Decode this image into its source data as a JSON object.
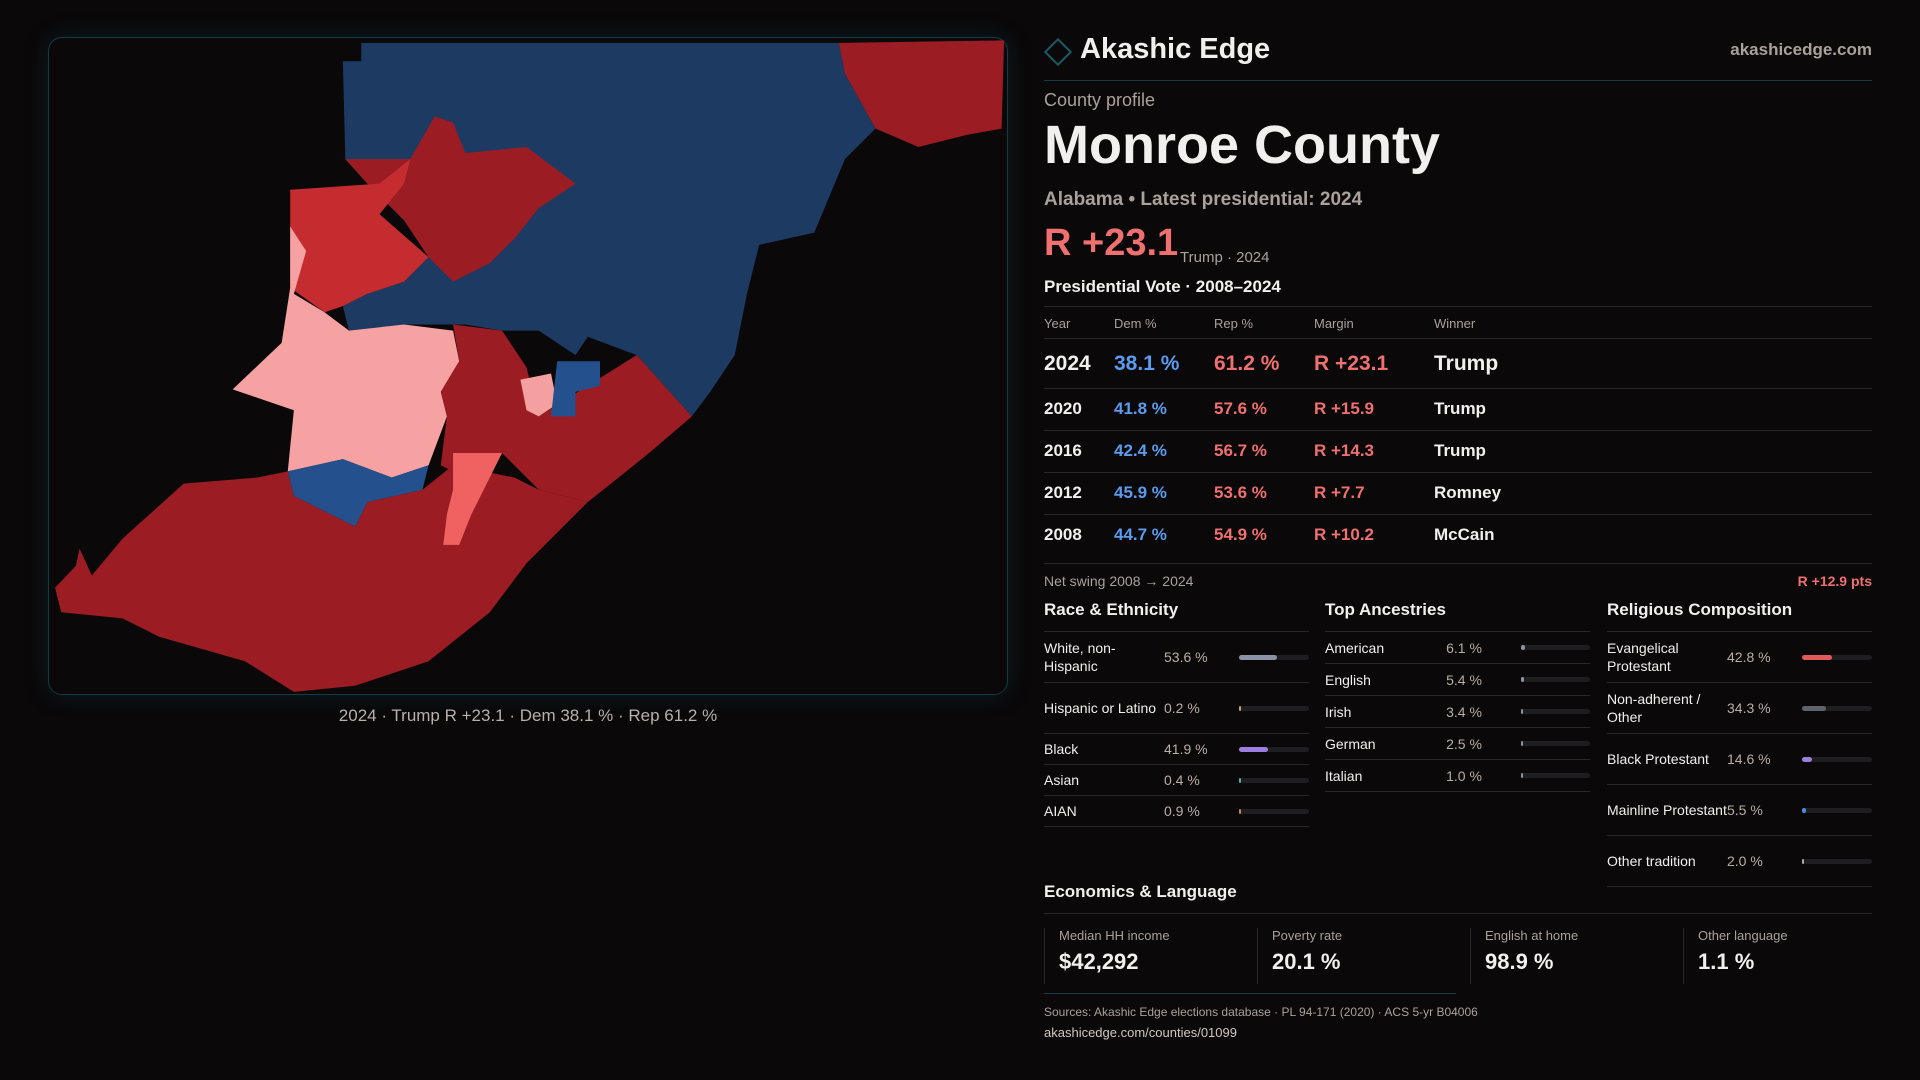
{
  "brand": {
    "name": "Akashic Edge",
    "site": "akashicedge.com"
  },
  "profile": {
    "eyebrow": "County profile",
    "title": "Monroe County",
    "subtitle": "Alabama • Latest presidential: 2024",
    "margin": "R +23.1",
    "margin_note": "Trump · 2024"
  },
  "map": {
    "caption": "2024 · Trump R +23.1 · Dem 38.1 % · Rep 61.2 %",
    "colors": {
      "dem": "#1d3a63",
      "rep": "#9b1c22"
    }
  },
  "votes": {
    "title": "Presidential Vote · 2008–2024",
    "headers": [
      "Year",
      "Dem %",
      "Rep %",
      "Margin",
      "Winner"
    ],
    "rows": [
      [
        "2024",
        "38.1 %",
        "61.2 %",
        "R +23.1",
        "Trump"
      ],
      [
        "2020",
        "41.8 %",
        "57.6 %",
        "R +15.9",
        "Trump"
      ],
      [
        "2016",
        "42.4 %",
        "56.7 %",
        "R +14.3",
        "Trump"
      ],
      [
        "2012",
        "45.9 %",
        "53.6 %",
        "R +7.7",
        "Romney"
      ],
      [
        "2008",
        "44.7 %",
        "54.9 %",
        "R +10.2",
        "McCain"
      ]
    ],
    "swing_label": "Net swing 2008 → 2024",
    "swing_value": "R +12.9 pts"
  },
  "race": {
    "title": "Race & Ethnicity",
    "items": [
      {
        "label": "White, non-Hispanic",
        "value": "53.6 %",
        "pct": 53.6,
        "color": "#8a93a6"
      },
      {
        "label": "Hispanic or Latino",
        "value": "0.2 %",
        "pct": 0.2,
        "color": "#c8a060"
      },
      {
        "label": "Black",
        "value": "41.9 %",
        "pct": 41.9,
        "color": "#9b7ee0"
      },
      {
        "label": "Asian",
        "value": "0.4 %",
        "pct": 0.4,
        "color": "#4fb0a0"
      },
      {
        "label": "AIAN",
        "value": "0.9 %",
        "pct": 0.9,
        "color": "#d08050"
      }
    ]
  },
  "ancestry": {
    "title": "Top Ancestries",
    "items": [
      {
        "label": "American",
        "value": "6.1 %",
        "pct": 6.1,
        "color": "#8a93a6"
      },
      {
        "label": "English",
        "value": "5.4 %",
        "pct": 5.4,
        "color": "#8a93a6"
      },
      {
        "label": "Irish",
        "value": "3.4 %",
        "pct": 3.4,
        "color": "#8a93a6"
      },
      {
        "label": "German",
        "value": "2.5 %",
        "pct": 2.5,
        "color": "#8a93a6"
      },
      {
        "label": "Italian",
        "value": "1.0 %",
        "pct": 1.0,
        "color": "#8a93a6"
      }
    ]
  },
  "religion": {
    "title": "Religious Composition",
    "items": [
      {
        "label": "Evangelical Protestant",
        "value": "42.8 %",
        "pct": 42.8,
        "color": "#e05a5a"
      },
      {
        "label": "Non-adherent / Other",
        "value": "34.3 %",
        "pct": 34.3,
        "color": "#5e636c"
      },
      {
        "label": "Black Protestant",
        "value": "14.6 %",
        "pct": 14.6,
        "color": "#9b7ee0"
      },
      {
        "label": "Mainline Protestant",
        "value": "5.5 %",
        "pct": 5.5,
        "color": "#4a8ae0"
      },
      {
        "label": "Other tradition",
        "value": "2.0 %",
        "pct": 2.0,
        "color": "#b0a8a0"
      }
    ]
  },
  "econ": {
    "title": "Economics & Language",
    "cards": [
      {
        "label": "Median HH income",
        "value": "$42,292"
      },
      {
        "label": "Poverty rate",
        "value": "20.1 %"
      },
      {
        "label": "English at home",
        "value": "98.9 %"
      },
      {
        "label": "Other language",
        "value": "1.1 %"
      }
    ]
  },
  "footer": {
    "sources": "Sources: Akashic Edge elections database · PL 94-171 (2020) · ACS 5-yr B04006",
    "url": "akashicedge.com/counties/01099"
  }
}
